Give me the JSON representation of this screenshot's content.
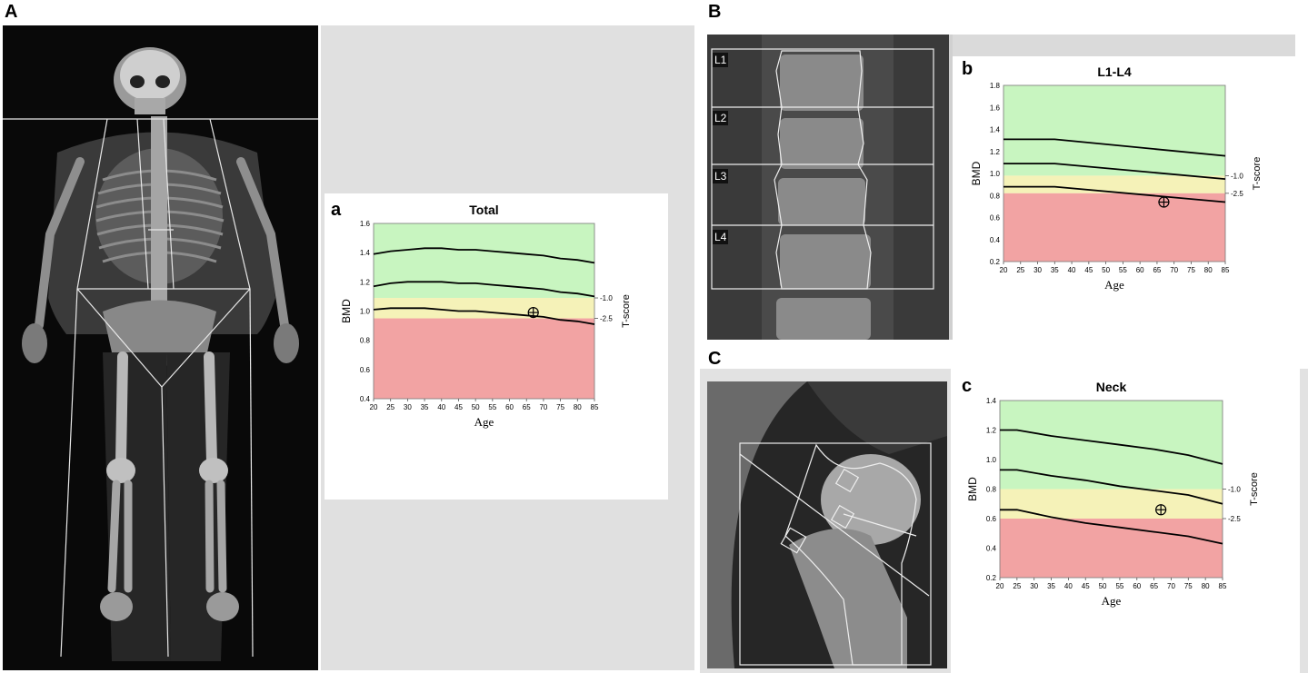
{
  "figure": {
    "panel_letters": [
      "A",
      "B",
      "C"
    ],
    "subpanel_letters": [
      "a",
      "b",
      "c"
    ],
    "vertebra_labels": [
      "L1",
      "L2",
      "L3",
      "L4"
    ]
  },
  "colors": {
    "normal_zone": "#c8f5c0",
    "osteopenia_zone": "#f5f2b8",
    "osteoporosis_zone": "#f2a3a3",
    "curve": "#000000",
    "panel_gray": "#dcdcdc"
  },
  "chart_data": [
    {
      "type": "line",
      "title": "Total",
      "xlabel": "Age",
      "ylabel": "BMD",
      "right_label": "T-score",
      "x_ticks": [
        20,
        25,
        30,
        35,
        40,
        45,
        50,
        55,
        60,
        65,
        70,
        75,
        80,
        85
      ],
      "y_ticks": [
        0.4,
        0.6,
        0.8,
        1.0,
        1.2,
        1.4,
        1.6
      ],
      "y_tick_labels": [
        "0.4",
        "0.6",
        "0.8",
        "1.0",
        "1.2",
        "1.4",
        "1.6"
      ],
      "xlim": [
        20,
        85
      ],
      "ylim": [
        0.4,
        1.6
      ],
      "zones": [
        {
          "name": "normal",
          "from": 1.09,
          "to": 1.6
        },
        {
          "name": "osteopenia",
          "from": 0.95,
          "to": 1.09
        },
        {
          "name": "osteoporosis",
          "from": 0.4,
          "to": 0.95
        }
      ],
      "tscore_marks": [
        {
          "label": "-1.0",
          "y": 1.09
        },
        {
          "label": "-2.5",
          "y": 0.95
        }
      ],
      "series": [
        {
          "x": [
            20,
            25,
            30,
            35,
            40,
            45,
            50,
            55,
            60,
            65,
            70,
            75,
            80,
            85
          ],
          "y": [
            1.39,
            1.41,
            1.42,
            1.43,
            1.43,
            1.42,
            1.42,
            1.41,
            1.4,
            1.39,
            1.38,
            1.36,
            1.35,
            1.33
          ]
        },
        {
          "x": [
            20,
            25,
            30,
            35,
            40,
            45,
            50,
            55,
            60,
            65,
            70,
            75,
            80,
            85
          ],
          "y": [
            1.17,
            1.19,
            1.2,
            1.2,
            1.2,
            1.19,
            1.19,
            1.18,
            1.17,
            1.16,
            1.15,
            1.13,
            1.12,
            1.1
          ]
        },
        {
          "x": [
            20,
            25,
            30,
            35,
            40,
            45,
            50,
            55,
            60,
            65,
            70,
            75,
            80,
            85
          ],
          "y": [
            1.01,
            1.02,
            1.02,
            1.02,
            1.01,
            1.0,
            1.0,
            0.99,
            0.98,
            0.97,
            0.96,
            0.94,
            0.93,
            0.91
          ]
        }
      ],
      "patient_point": {
        "x": 67,
        "y": 0.99
      }
    },
    {
      "type": "line",
      "title": "L1-L4",
      "xlabel": "Age",
      "ylabel": "BMD",
      "right_label": "T-score",
      "x_ticks": [
        20,
        25,
        30,
        35,
        40,
        45,
        50,
        55,
        60,
        65,
        70,
        75,
        80,
        85
      ],
      "y_ticks": [
        0.2,
        0.4,
        0.6,
        0.8,
        1.0,
        1.2,
        1.4,
        1.6,
        1.8
      ],
      "y_tick_labels": [
        "0.2",
        "0.4",
        "0.6",
        "0.8",
        "1.0",
        "1.2",
        "1.4",
        "1.6",
        "1.8"
      ],
      "xlim": [
        20,
        85
      ],
      "ylim": [
        0.2,
        1.8
      ],
      "zones": [
        {
          "name": "normal",
          "from": 0.98,
          "to": 1.8
        },
        {
          "name": "osteopenia",
          "from": 0.82,
          "to": 0.98
        },
        {
          "name": "osteoporosis",
          "from": 0.2,
          "to": 0.82
        }
      ],
      "tscore_marks": [
        {
          "label": "-1.0",
          "y": 0.98
        },
        {
          "label": "-2.5",
          "y": 0.82
        }
      ],
      "series": [
        {
          "x": [
            20,
            35,
            85
          ],
          "y": [
            1.31,
            1.31,
            1.16
          ]
        },
        {
          "x": [
            20,
            35,
            85
          ],
          "y": [
            1.09,
            1.09,
            0.95
          ]
        },
        {
          "x": [
            20,
            35,
            85
          ],
          "y": [
            0.88,
            0.88,
            0.74
          ]
        }
      ],
      "patient_point": {
        "x": 67,
        "y": 0.74
      }
    },
    {
      "type": "line",
      "title": "Neck",
      "xlabel": "Age",
      "ylabel": "BMD",
      "right_label": "T-score",
      "x_ticks": [
        20,
        25,
        30,
        35,
        40,
        45,
        50,
        55,
        60,
        65,
        70,
        75,
        80,
        85
      ],
      "y_ticks": [
        0.2,
        0.4,
        0.6,
        0.8,
        1.0,
        1.2,
        1.4
      ],
      "y_tick_labels": [
        "0.2",
        "0.4",
        "0.6",
        "0.8",
        "1.0",
        "1.2",
        "1.4"
      ],
      "xlim": [
        20,
        85
      ],
      "ylim": [
        0.2,
        1.4
      ],
      "zones": [
        {
          "name": "normal",
          "from": 0.8,
          "to": 1.4
        },
        {
          "name": "osteopenia",
          "from": 0.6,
          "to": 0.8
        },
        {
          "name": "osteoporosis",
          "from": 0.2,
          "to": 0.6
        }
      ],
      "tscore_marks": [
        {
          "label": "-1.0",
          "y": 0.8
        },
        {
          "label": "-2.5",
          "y": 0.6
        }
      ],
      "series": [
        {
          "x": [
            20,
            25,
            35,
            45,
            55,
            65,
            75,
            85
          ],
          "y": [
            1.2,
            1.2,
            1.16,
            1.13,
            1.1,
            1.07,
            1.03,
            0.97
          ]
        },
        {
          "x": [
            20,
            25,
            35,
            45,
            55,
            65,
            75,
            85
          ],
          "y": [
            0.93,
            0.93,
            0.89,
            0.86,
            0.82,
            0.79,
            0.76,
            0.7
          ]
        },
        {
          "x": [
            20,
            25,
            35,
            45,
            55,
            65,
            75,
            85
          ],
          "y": [
            0.66,
            0.66,
            0.61,
            0.57,
            0.54,
            0.51,
            0.48,
            0.43
          ]
        }
      ],
      "patient_point": {
        "x": 67,
        "y": 0.66
      }
    }
  ]
}
